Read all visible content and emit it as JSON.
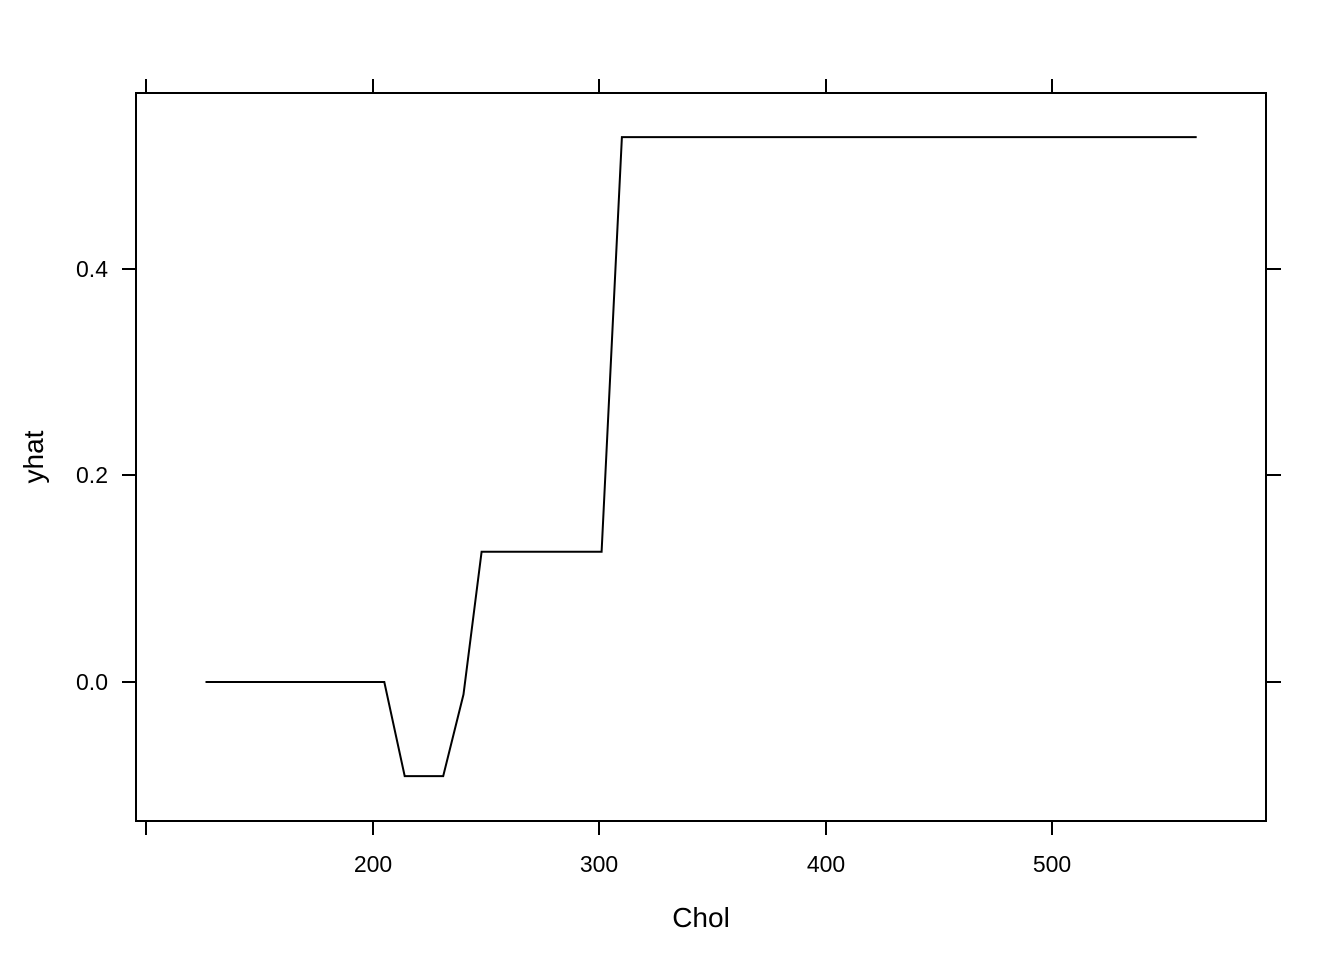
{
  "chart_data": {
    "type": "line",
    "title": "",
    "xlabel": "Chol",
    "ylabel": "yhat",
    "xlim": [
      126,
      564
    ],
    "ylim": [
      -0.134,
      0.56
    ],
    "x_ticks": [
      {
        "value": 200,
        "label": "200"
      },
      {
        "value": 300,
        "label": "300"
      },
      {
        "value": 400,
        "label": "400"
      },
      {
        "value": 500,
        "label": "500"
      }
    ],
    "y_ticks": [
      {
        "value": 0.0,
        "label": "0.0"
      },
      {
        "value": 0.2,
        "label": "0.2"
      },
      {
        "value": 0.4,
        "label": "0.4"
      }
    ],
    "grid": false,
    "legend": "none",
    "line_color": "#000000",
    "series": [
      {
        "x": [
          126,
          205,
          214,
          231,
          240,
          248,
          301,
          310,
          564
        ],
        "y": [
          0.0,
          0.0,
          -0.091,
          -0.091,
          -0.012,
          0.126,
          0.126,
          0.527,
          0.527
        ]
      }
    ]
  }
}
